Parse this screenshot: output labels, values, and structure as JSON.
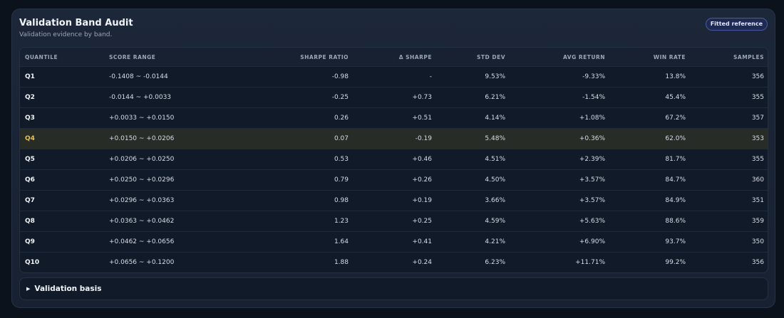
{
  "header": {
    "title": "Validation Band Audit",
    "subtitle": "Validation evidence by band.",
    "badge": "Fitted reference"
  },
  "table": {
    "columns": [
      "QUANTILE",
      "SCORE RANGE",
      "SHARPE RATIO",
      "Δ SHARPE",
      "STD DEV",
      "AVG RETURN",
      "WIN RATE",
      "SAMPLES"
    ],
    "rows": [
      [
        "Q1",
        "-0.1408 ~ -0.0144",
        "-0.98",
        "-",
        "9.53%",
        "-9.33%",
        "13.8%",
        "356"
      ],
      [
        "Q2",
        "-0.0144 ~ +0.0033",
        "-0.25",
        "+0.73",
        "6.21%",
        "-1.54%",
        "45.4%",
        "355"
      ],
      [
        "Q3",
        "+0.0033 ~ +0.0150",
        "0.26",
        "+0.51",
        "4.14%",
        "+1.08%",
        "67.2%",
        "357"
      ],
      [
        "Q4",
        "+0.0150 ~ +0.0206",
        "0.07",
        "-0.19",
        "5.48%",
        "+0.36%",
        "62.0%",
        "353"
      ],
      [
        "Q5",
        "+0.0206 ~ +0.0250",
        "0.53",
        "+0.46",
        "4.51%",
        "+2.39%",
        "81.7%",
        "355"
      ],
      [
        "Q6",
        "+0.0250 ~ +0.0296",
        "0.79",
        "+0.26",
        "4.50%",
        "+3.57%",
        "84.7%",
        "360"
      ],
      [
        "Q7",
        "+0.0296 ~ +0.0363",
        "0.98",
        "+0.19",
        "3.66%",
        "+3.57%",
        "84.9%",
        "351"
      ],
      [
        "Q8",
        "+0.0363 ~ +0.0462",
        "1.23",
        "+0.25",
        "4.59%",
        "+5.63%",
        "88.6%",
        "359"
      ],
      [
        "Q9",
        "+0.0462 ~ +0.0656",
        "1.64",
        "+0.41",
        "4.21%",
        "+6.90%",
        "93.7%",
        "350"
      ],
      [
        "Q10",
        "+0.0656 ~ +0.1200",
        "1.88",
        "+0.24",
        "6.23%",
        "+11.71%",
        "99.2%",
        "356"
      ]
    ]
  },
  "footer": {
    "toggle": "Validation basis"
  }
}
